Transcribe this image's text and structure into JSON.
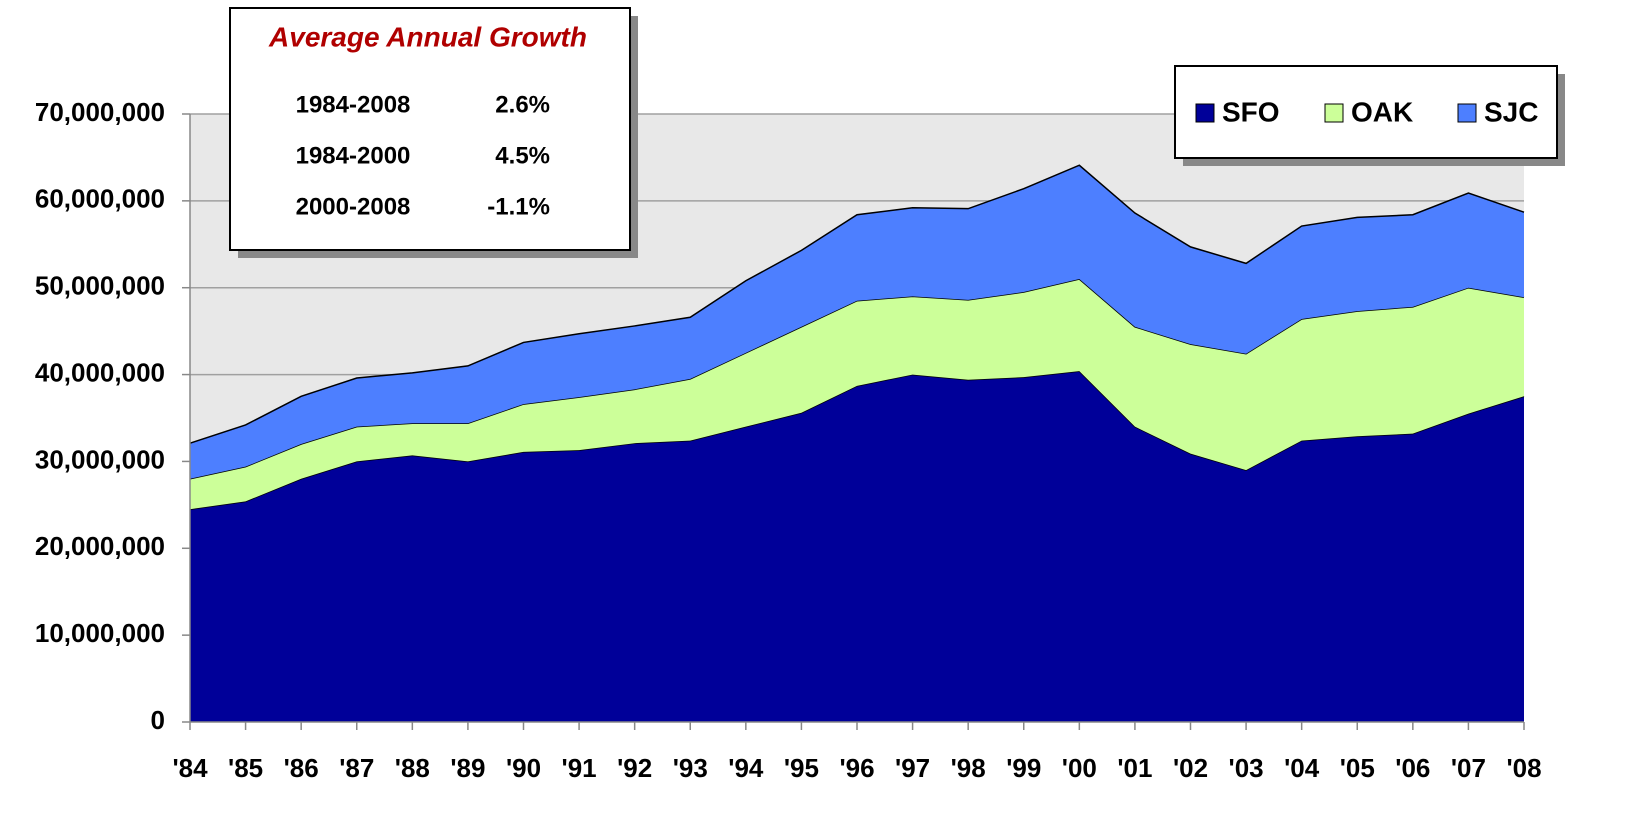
{
  "chart_data": {
    "type": "stacked_area",
    "categories": [
      "'84",
      "'85",
      "'86",
      "'87",
      "'88",
      "'89",
      "'90",
      "'91",
      "'92",
      "'93",
      "'94",
      "'95",
      "'96",
      "'97",
      "'98",
      "'99",
      "'00",
      "'01",
      "'02",
      "'03",
      "'04",
      "'05",
      "'06",
      "'07",
      "'08"
    ],
    "series": [
      {
        "name": "SFO",
        "color": "#000099",
        "values": [
          24500000,
          25400000,
          28000000,
          30000000,
          30700000,
          30000000,
          31100000,
          31300000,
          32100000,
          32400000,
          34000000,
          35600000,
          38700000,
          40000000,
          39400000,
          39700000,
          40400000,
          34000000,
          30900000,
          29000000,
          32400000,
          32900000,
          33200000,
          35500000,
          37500000
        ]
      },
      {
        "name": "OAK",
        "color": "#ccff99",
        "values": [
          3500000,
          4000000,
          4000000,
          4000000,
          3700000,
          4400000,
          5500000,
          6100000,
          6200000,
          7100000,
          8500000,
          9900000,
          9800000,
          9000000,
          9200000,
          9800000,
          10600000,
          11500000,
          12600000,
          13400000,
          14000000,
          14400000,
          14600000,
          14500000,
          11400000
        ]
      },
      {
        "name": "SJC",
        "color": "#4d7fff",
        "values": [
          4100000,
          4800000,
          5500000,
          5600000,
          5800000,
          6600000,
          7100000,
          7300000,
          7300000,
          7100000,
          8300000,
          8800000,
          9900000,
          10200000,
          10500000,
          11900000,
          13100000,
          13100000,
          11200000,
          10400000,
          10700000,
          10800000,
          10600000,
          10900000,
          9800000
        ]
      }
    ],
    "ylim": [
      0,
      70000000
    ],
    "yticks": [
      0,
      {
        "value": 10000000,
        "label": "10,000,000"
      },
      {
        "value": 20000000,
        "label": "20,000,000"
      },
      {
        "value": 30000000,
        "label": "30,000,000"
      },
      {
        "value": 40000000,
        "label": "40,000,000"
      },
      {
        "value": 50000000,
        "label": "50,000,000"
      },
      {
        "value": 60000000,
        "label": "60,000,000"
      },
      {
        "value": 70000000,
        "label": "70,000,000"
      }
    ],
    "grid": true,
    "legend": "top-right",
    "annotation": {
      "title": "Average Annual Growth",
      "rows": [
        [
          "1984-2008",
          "2.6%"
        ],
        [
          "1984-2000",
          "4.5%"
        ],
        [
          "2000-2008",
          "-1.1%"
        ]
      ]
    }
  }
}
